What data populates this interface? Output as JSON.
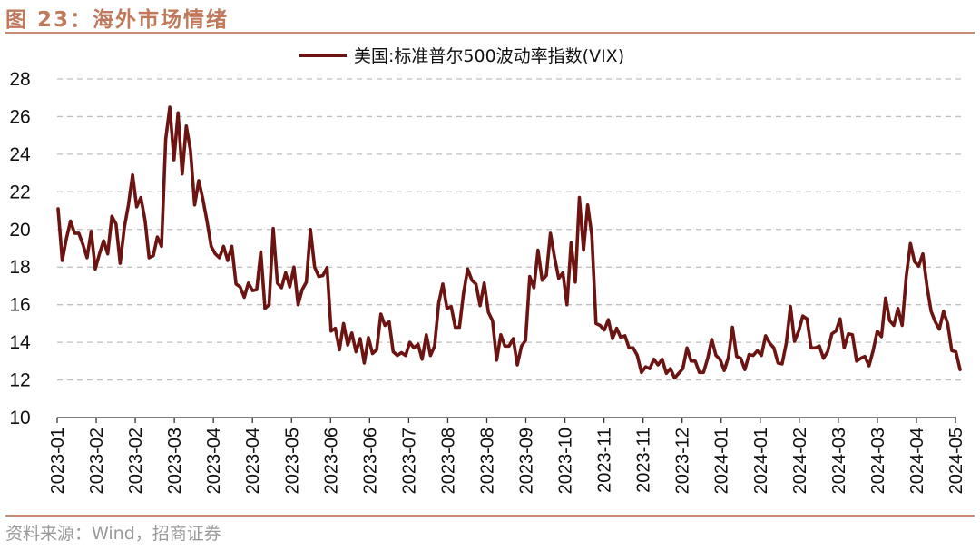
{
  "figure": {
    "title": "图 23：海外市场情绪",
    "source": "资料来源：Wind，招商证券"
  },
  "colors": {
    "series": "#6b1411",
    "title": "#c0795b",
    "rule": "#c98a72",
    "grid": "#bfbfbf"
  },
  "chart_data": {
    "type": "line",
    "title": "",
    "xlabel": "",
    "ylabel": "",
    "ylim": [
      10,
      28
    ],
    "yticks": [
      10,
      12,
      14,
      16,
      18,
      20,
      22,
      24,
      26,
      28
    ],
    "grid": "horizontal dashed",
    "legend_placement": "top-center",
    "x_tick_labels": [
      "2023-01",
      "2023-02",
      "2023-02",
      "2023-03",
      "2023-04",
      "2023-04",
      "2023-05",
      "2023-06",
      "2023-06",
      "2023-07",
      "2023-08",
      "2023-08",
      "2023-09",
      "2023-10",
      "2023-11",
      "2023-11",
      "2023-12",
      "2024-01",
      "2024-01",
      "2024-02",
      "2024-03",
      "2024-03",
      "2024-04",
      "2024-05"
    ],
    "series": [
      {
        "name": "美国:标准普尔500波动率指数(VIX)",
        "values": [
          21.1,
          18.35,
          19.5,
          20.45,
          19.8,
          19.8,
          19.2,
          18.5,
          19.9,
          17.9,
          18.7,
          19.4,
          18.7,
          20.7,
          20.3,
          18.2,
          20.1,
          21.3,
          22.9,
          21.2,
          21.7,
          20.5,
          18.5,
          18.6,
          19.6,
          19.1,
          24.8,
          26.5,
          23.7,
          26.2,
          22.95,
          25.5,
          24.2,
          21.3,
          22.6,
          21.6,
          20.45,
          19.1,
          18.7,
          18.5,
          19.1,
          18.35,
          19.1,
          17.1,
          16.95,
          16.4,
          17.15,
          16.75,
          16.8,
          18.8,
          15.8,
          16.0,
          20.05,
          17.15,
          16.9,
          17.7,
          16.95,
          18.0,
          16.0,
          16.8,
          17.2,
          20.0,
          18.0,
          17.5,
          17.55,
          17.97,
          14.6,
          14.75,
          13.6,
          15.0,
          13.85,
          14.5,
          13.5,
          14.2,
          12.9,
          14.25,
          13.4,
          13.6,
          15.5,
          14.9,
          15.1,
          13.5,
          13.3,
          13.45,
          13.3,
          14.0,
          13.7,
          13.9,
          13.1,
          14.4,
          13.3,
          13.8,
          16.1,
          17.1,
          15.8,
          15.9,
          14.8,
          14.8,
          16.6,
          17.9,
          17.3,
          17.1,
          15.95,
          17.15,
          15.6,
          15.15,
          13.05,
          14.4,
          13.8,
          13.8,
          14.2,
          12.8,
          13.8,
          14.1,
          17.5,
          16.9,
          18.9,
          17.3,
          17.55,
          19.8,
          18.5,
          17.4,
          17.7,
          16.0,
          19.3,
          17.2,
          21.7,
          18.9,
          21.3,
          19.7,
          15.0,
          14.9,
          14.65,
          15.2,
          14.2,
          14.75,
          14.25,
          14.35,
          13.7,
          13.7,
          13.3,
          12.4,
          12.7,
          12.6,
          13.1,
          12.8,
          13.1,
          12.35,
          12.6,
          12.1,
          12.35,
          12.6,
          13.7,
          13.0,
          13.0,
          12.4,
          12.4,
          13.15,
          14.15,
          13.3,
          13.1,
          12.5,
          13.2,
          14.8,
          13.25,
          13.15,
          12.55,
          13.35,
          13.3,
          13.55,
          13.3,
          14.35,
          13.95,
          13.7,
          12.9,
          12.85,
          13.95,
          15.9,
          14.05,
          14.6,
          15.4,
          15.25,
          13.7,
          13.7,
          13.8,
          13.15,
          13.5,
          14.45,
          14.6,
          15.25,
          13.7,
          14.45,
          14.4,
          13.0,
          13.15,
          13.25,
          12.75,
          13.55,
          14.6,
          14.3,
          16.35,
          15.15,
          14.9,
          15.8,
          14.9,
          17.5,
          19.25,
          18.3,
          18.05,
          18.7,
          17.0,
          15.65,
          15.1,
          14.7,
          15.65,
          15.0,
          13.55,
          13.5,
          12.55
        ]
      }
    ]
  }
}
